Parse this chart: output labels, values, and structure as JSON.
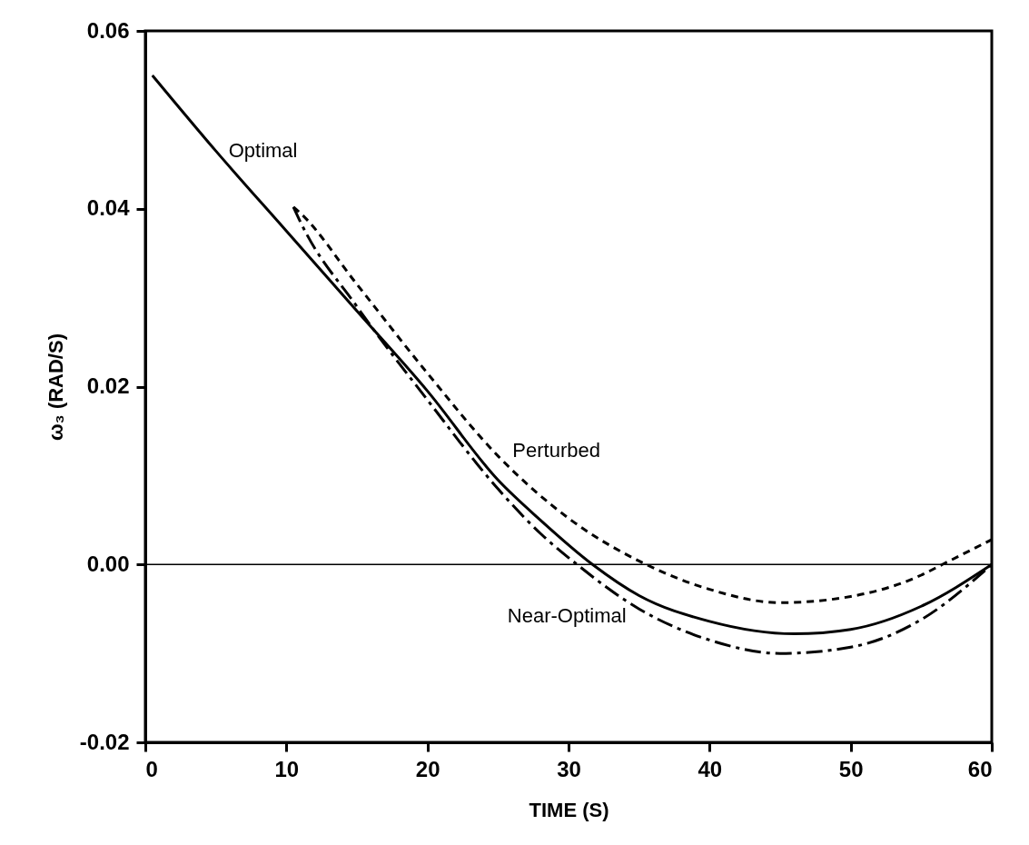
{
  "chart_data": {
    "type": "line",
    "xlabel": "TIME (S)",
    "ylabel": "ω₃ (RAD/S)",
    "xlim": [
      0,
      60
    ],
    "xticks": [
      0,
      10,
      20,
      30,
      40,
      50,
      60
    ],
    "ylim": [
      -0.02,
      0.06
    ],
    "yticks": [
      {
        "value": -0.02,
        "label": "-0.02"
      },
      {
        "value": 0,
        "label": "0.00"
      },
      {
        "value": 0.02,
        "label": "0.02"
      },
      {
        "value": 0.04,
        "label": "0.04"
      },
      {
        "value": 0.06,
        "label": "0.06"
      }
    ],
    "grid": false,
    "series": [
      {
        "name": "Optimal",
        "color": "#000000",
        "line_style": "solid",
        "x": [
          0.5,
          5,
          10,
          15,
          20,
          25,
          28,
          31.7,
          35,
          40,
          46,
          50,
          55,
          60
        ],
        "values": [
          0.055,
          0.0465,
          0.0375,
          0.0285,
          0.0195,
          0.0095,
          0.005,
          0,
          -0.0035,
          -0.0064,
          -0.0078,
          -0.0073,
          -0.0047,
          0
        ]
      },
      {
        "name": "Perturbed",
        "color": "#000000",
        "line_style": "dashed",
        "x": [
          10.5,
          11,
          15,
          20,
          25,
          30,
          35.5,
          40,
          45,
          50,
          55,
          56.5,
          60
        ],
        "values": [
          0.0402,
          0.0395,
          0.0315,
          0.0215,
          0.0122,
          0.0052,
          0,
          -0.0028,
          -0.0043,
          -0.0036,
          -0.0012,
          0,
          0.0028
        ]
      },
      {
        "name": "Near-Optimal",
        "color": "#000000",
        "line_style": "dashdot",
        "x": [
          10.5,
          11,
          15,
          20,
          25,
          28,
          30.6,
          35,
          40,
          45,
          50,
          55,
          60
        ],
        "values": [
          0.0402,
          0.0385,
          0.029,
          0.0185,
          0.0085,
          0.0035,
          0,
          -0.005,
          -0.0085,
          -0.01,
          -0.0093,
          -0.0062,
          0
        ]
      }
    ],
    "ref_lines": [
      {
        "axis": "y",
        "value": 0
      }
    ]
  }
}
